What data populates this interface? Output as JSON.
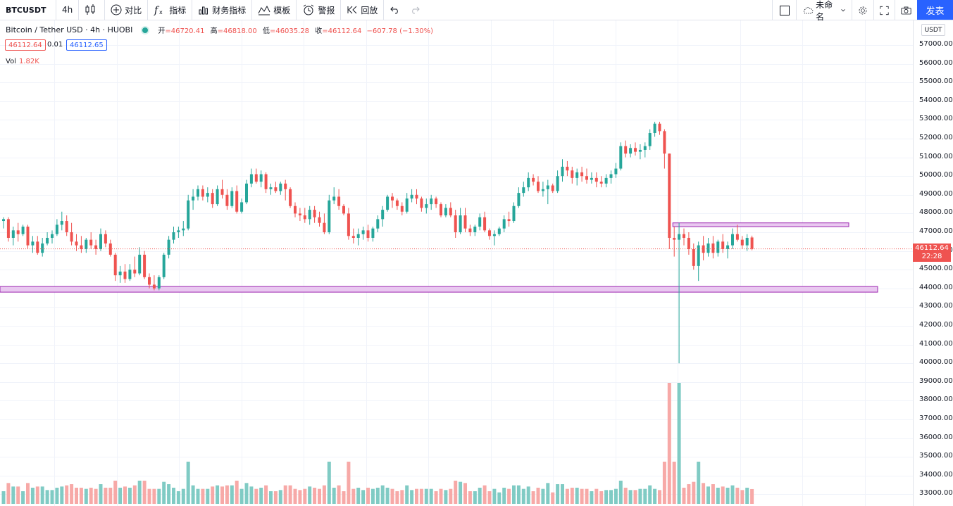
{
  "toolbar": {
    "symbol": "BTCUSDT",
    "interval": "4h",
    "compare": "对比",
    "indicators": "指标",
    "financials": "财务指标",
    "templates": "模板",
    "alerts": "警报",
    "replay": "回放",
    "layout_name": "未命名",
    "publish": "发表"
  },
  "legend": {
    "title": "Bitcoin / Tether USD · 4h · HUOBI",
    "open_label": "开",
    "open": "46720.41",
    "high_label": "高",
    "high": "46818.00",
    "low_label": "低",
    "low": "46035.28",
    "close_label": "收",
    "close": "46112.64",
    "change": "−607.78 (−1.30%)",
    "sell_price": "46112.64",
    "spread": "0.01",
    "buy_price": "46112.65",
    "volume_label": "Vol",
    "volume": "1.82K"
  },
  "price_axis": {
    "currency": "USDT",
    "labels": [
      "57000.00",
      "56000.00",
      "55000.00",
      "54000.00",
      "53000.00",
      "52000.00",
      "51000.00",
      "50000.00",
      "49000.00",
      "48000.00",
      "47000.00",
      "46000.00",
      "45000.00",
      "44000.00",
      "43000.00",
      "42000.00",
      "41000.00",
      "40000.00",
      "39000.00",
      "38000.00",
      "37000.00",
      "36000.00",
      "35000.00",
      "34000.00",
      "33000.00"
    ],
    "current_price": "46112.64",
    "countdown": "22:28"
  },
  "colors": {
    "up": "#26a69a",
    "down": "#ef5350",
    "vol_up": "#80cbc4",
    "vol_down": "#f7a9a7",
    "zone_fill": "#e9c8f0",
    "zone_stroke": "#9c27b0",
    "accent": "#2962ff"
  },
  "chart_data": {
    "type": "candlestick",
    "symbol": "BTCUSDT",
    "interval": "4h",
    "ylim": [
      33000,
      57500
    ],
    "support_zone": [
      43800,
      44100
    ],
    "resistance_zone": [
      47300,
      47500
    ],
    "candles": [
      [
        47600,
        47800,
        47200,
        47700
      ],
      [
        47700,
        47800,
        46500,
        46700
      ],
      [
        46700,
        47300,
        46300,
        47100
      ],
      [
        47100,
        47500,
        46500,
        46900
      ],
      [
        46900,
        47400,
        46800,
        47300
      ],
      [
        47300,
        47400,
        46100,
        46300
      ],
      [
        46300,
        46800,
        45900,
        46500
      ],
      [
        46500,
        46800,
        45800,
        45900
      ],
      [
        45900,
        46700,
        45700,
        46400
      ],
      [
        46400,
        47000,
        46300,
        46700
      ],
      [
        46700,
        47100,
        46400,
        46900
      ],
      [
        46900,
        47700,
        46800,
        47400
      ],
      [
        47400,
        48100,
        47100,
        47600
      ],
      [
        47600,
        47900,
        46800,
        47000
      ],
      [
        47000,
        47500,
        46300,
        46500
      ],
      [
        46500,
        46900,
        46000,
        46300
      ],
      [
        46300,
        46800,
        45900,
        46100
      ],
      [
        46100,
        46700,
        45900,
        46600
      ],
      [
        46600,
        47000,
        46100,
        46300
      ],
      [
        46300,
        46600,
        45800,
        46100
      ],
      [
        46100,
        47200,
        46000,
        46900
      ],
      [
        46900,
        47100,
        46200,
        46400
      ],
      [
        46400,
        46600,
        45700,
        45800
      ],
      [
        45800,
        45900,
        44400,
        44700
      ],
      [
        44700,
        45200,
        44300,
        44900
      ],
      [
        44900,
        45300,
        44300,
        44500
      ],
      [
        44500,
        45300,
        44400,
        45000
      ],
      [
        45000,
        45700,
        44600,
        44800
      ],
      [
        44800,
        46200,
        44700,
        45800
      ],
      [
        45800,
        46000,
        44500,
        44600
      ],
      [
        44600,
        44800,
        44000,
        44200
      ],
      [
        44200,
        44700,
        43900,
        44000
      ],
      [
        44000,
        44700,
        43900,
        44600
      ],
      [
        44600,
        45900,
        44500,
        45800
      ],
      [
        45800,
        46800,
        45600,
        46600
      ],
      [
        46600,
        47300,
        46400,
        47000
      ],
      [
        47000,
        47300,
        46700,
        47100
      ],
      [
        47100,
        47600,
        46800,
        47200
      ],
      [
        47200,
        49000,
        47100,
        48700
      ],
      [
        48700,
        49300,
        48200,
        48900
      ],
      [
        48900,
        49500,
        48700,
        49300
      ],
      [
        49300,
        49500,
        48700,
        48900
      ],
      [
        48900,
        49400,
        48600,
        49100
      ],
      [
        49100,
        49300,
        48300,
        48500
      ],
      [
        48500,
        49500,
        48400,
        49300
      ],
      [
        49300,
        49800,
        48800,
        49000
      ],
      [
        49000,
        49300,
        48200,
        48400
      ],
      [
        48400,
        49400,
        48300,
        49200
      ],
      [
        49200,
        49500,
        48000,
        48100
      ],
      [
        48100,
        48800,
        48000,
        48600
      ],
      [
        48600,
        49800,
        48500,
        49600
      ],
      [
        49600,
        50400,
        49400,
        50100
      ],
      [
        50100,
        50400,
        49600,
        49700
      ],
      [
        49700,
        50300,
        49400,
        50100
      ],
      [
        50100,
        50200,
        49100,
        49300
      ],
      [
        49300,
        49600,
        49000,
        49400
      ],
      [
        49400,
        49700,
        49100,
        49200
      ],
      [
        49200,
        49700,
        49000,
        49600
      ],
      [
        49600,
        49800,
        48700,
        49300
      ],
      [
        49300,
        49400,
        48300,
        48400
      ],
      [
        48400,
        48600,
        47800,
        48000
      ],
      [
        48000,
        48300,
        47600,
        47900
      ],
      [
        47900,
        48300,
        47500,
        47700
      ],
      [
        47700,
        48400,
        47400,
        48200
      ],
      [
        48200,
        48400,
        47500,
        47800
      ],
      [
        47800,
        48100,
        47300,
        47500
      ],
      [
        47500,
        48000,
        46900,
        47000
      ],
      [
        47000,
        49000,
        46900,
        48700
      ],
      [
        48700,
        49400,
        48500,
        48900
      ],
      [
        48900,
        49300,
        48200,
        48400
      ],
      [
        48400,
        48500,
        47900,
        48000
      ],
      [
        48000,
        48300,
        46600,
        46800
      ],
      [
        46800,
        47200,
        46400,
        46700
      ],
      [
        46700,
        47200,
        46300,
        46900
      ],
      [
        46900,
        47300,
        46600,
        47100
      ],
      [
        47100,
        47400,
        46500,
        46700
      ],
      [
        46700,
        47300,
        46500,
        47200
      ],
      [
        47200,
        47900,
        47000,
        47700
      ],
      [
        47700,
        48400,
        47300,
        48200
      ],
      [
        48200,
        49000,
        48100,
        48900
      ],
      [
        48900,
        49100,
        48300,
        48700
      ],
      [
        48700,
        48800,
        48200,
        48400
      ],
      [
        48400,
        48600,
        47900,
        48100
      ],
      [
        48100,
        49100,
        48000,
        48800
      ],
      [
        48800,
        49300,
        48600,
        49000
      ],
      [
        49000,
        49300,
        48500,
        48800
      ],
      [
        48800,
        48900,
        48100,
        48300
      ],
      [
        48300,
        48800,
        48000,
        48500
      ],
      [
        48500,
        49000,
        48200,
        48800
      ],
      [
        48800,
        48900,
        48300,
        48500
      ],
      [
        48500,
        48600,
        47800,
        47900
      ],
      [
        47900,
        48500,
        47800,
        48300
      ],
      [
        48300,
        48600,
        47800,
        47900
      ],
      [
        47900,
        48200,
        46700,
        47000
      ],
      [
        47000,
        48300,
        46900,
        47900
      ],
      [
        47900,
        48300,
        47000,
        47200
      ],
      [
        47200,
        47400,
        46800,
        47000
      ],
      [
        47000,
        47400,
        46800,
        47300
      ],
      [
        47300,
        48000,
        47100,
        47800
      ],
      [
        47800,
        48100,
        47000,
        47100
      ],
      [
        47100,
        47200,
        46600,
        46800
      ],
      [
        46800,
        47100,
        46300,
        46900
      ],
      [
        46900,
        47300,
        46800,
        47200
      ],
      [
        47200,
        47900,
        47000,
        47700
      ],
      [
        47700,
        48100,
        47300,
        47600
      ],
      [
        47600,
        48600,
        47500,
        48400
      ],
      [
        48400,
        49400,
        48300,
        49100
      ],
      [
        49100,
        49700,
        48900,
        49400
      ],
      [
        49400,
        50200,
        49200,
        49900
      ],
      [
        49900,
        50100,
        49500,
        49700
      ],
      [
        49700,
        50000,
        49100,
        49200
      ],
      [
        49200,
        49700,
        48900,
        49300
      ],
      [
        49300,
        49800,
        48500,
        49500
      ],
      [
        49500,
        49600,
        49100,
        49200
      ],
      [
        49200,
        50300,
        49100,
        50000
      ],
      [
        50000,
        50900,
        49700,
        50500
      ],
      [
        50500,
        50800,
        50000,
        50300
      ],
      [
        50300,
        50500,
        49600,
        49900
      ],
      [
        49900,
        50400,
        49500,
        50200
      ],
      [
        50200,
        50500,
        49700,
        50000
      ],
      [
        50000,
        50400,
        49600,
        49800
      ],
      [
        49800,
        50200,
        49600,
        49900
      ],
      [
        49900,
        50200,
        49400,
        49700
      ],
      [
        49700,
        50000,
        49400,
        49600
      ],
      [
        49600,
        50100,
        49400,
        49900
      ],
      [
        49900,
        50300,
        49600,
        50100
      ],
      [
        50100,
        50700,
        49900,
        50400
      ],
      [
        50400,
        51800,
        50300,
        51600
      ],
      [
        51600,
        51900,
        51000,
        51200
      ],
      [
        51200,
        51700,
        51000,
        51500
      ],
      [
        51500,
        51800,
        51100,
        51300
      ],
      [
        51300,
        51700,
        50900,
        51400
      ],
      [
        51400,
        51800,
        51000,
        51600
      ],
      [
        51600,
        52500,
        51400,
        52300
      ],
      [
        52300,
        52900,
        52100,
        52800
      ],
      [
        52800,
        52900,
        52200,
        52400
      ],
      [
        52400,
        52500,
        50400,
        51200
      ],
      [
        51200,
        51200,
        46100,
        46700
      ],
      [
        46700,
        47300,
        45700,
        46600
      ],
      [
        46600,
        47500,
        40000,
        46900
      ],
      [
        46900,
        47200,
        46300,
        46700
      ],
      [
        46700,
        47000,
        45800,
        46100
      ],
      [
        46100,
        46400,
        45000,
        45200
      ],
      [
        45200,
        46500,
        44400,
        46300
      ],
      [
        46300,
        46800,
        45500,
        45900
      ],
      [
        45900,
        46700,
        45700,
        46400
      ],
      [
        46400,
        46800,
        45600,
        45900
      ],
      [
        45900,
        46600,
        45700,
        46500
      ],
      [
        46500,
        46900,
        45900,
        46100
      ],
      [
        46100,
        46500,
        45600,
        46300
      ],
      [
        46300,
        47200,
        46100,
        46900
      ],
      [
        46900,
        47400,
        46500,
        46600
      ],
      [
        46600,
        46800,
        46100,
        46300
      ],
      [
        46300,
        46900,
        46000,
        46700
      ],
      [
        46720.41,
        46818,
        46035.28,
        46112.64
      ]
    ]
  }
}
